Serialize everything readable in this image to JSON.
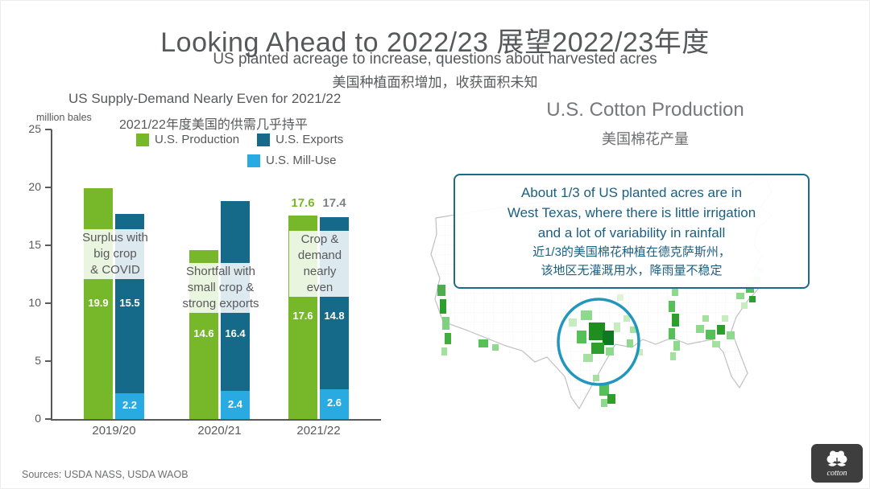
{
  "slide": {
    "title": "Looking Ahead to 2022/23 展望2022/23年度",
    "subtitle_en": "US planted acreage to increase, questions about harvested acres",
    "subtitle_zh": "美国种植面积增加，收获面积未知",
    "sources": "Sources: USDA NASS, USDA WAOB"
  },
  "chart": {
    "title_en": "US Supply-Demand Nearly Even for 2021/22",
    "title_zh": "2021/22年度美国的供需几乎持平",
    "unit_label": "million bales",
    "legend": [
      {
        "label": "U.S. Production",
        "color": "#76b82a"
      },
      {
        "label": "U.S. Exports",
        "color": "#156a8a"
      },
      {
        "label": "U.S. Mill-Use",
        "color": "#29abe2"
      }
    ]
  },
  "chart_data": {
    "type": "bar",
    "title": "US Supply-Demand Nearly Even for 2021/22",
    "unit": "million bales",
    "categories": [
      "2019/20",
      "2020/21",
      "2021/22"
    ],
    "series": [
      {
        "name": "U.S. Production",
        "color": "#76b82a",
        "values": [
          19.9,
          14.6,
          17.6
        ]
      },
      {
        "name": "U.S. Exports",
        "color": "#156a8a",
        "values": [
          15.5,
          16.4,
          14.8
        ],
        "stack": "demand"
      },
      {
        "name": "U.S. Mill-Use",
        "color": "#29abe2",
        "values": [
          2.2,
          2.4,
          2.6
        ],
        "stack": "demand"
      }
    ],
    "ylim": [
      0,
      25
    ],
    "yticks": [
      0,
      5,
      10,
      15,
      20,
      25
    ],
    "grid": false,
    "legend_position": "top",
    "group_annotations": [
      "Surplus with\nbig crop\n& COVID",
      "Shortfall with\nsmall crop &\nstrong exports",
      "Crop &\ndemand\nnearly even"
    ],
    "totals": [
      {
        "category": "2021/22",
        "production_label": "17.6",
        "production_color": "#76b82a",
        "demand_label": "17.4",
        "demand_color": "#808285"
      }
    ]
  },
  "map_panel": {
    "title_en": "U.S. Cotton Production",
    "title_zh": "美国棉花产量",
    "callout": {
      "lines_en": [
        "About 1/3 of US planted acres are in",
        "West Texas, where there is little irrigation",
        "and a lot of variability in rainfall"
      ],
      "lines_zh": [
        "近1/3的美国棉花种植在德克萨斯州，",
        "该地区无灌溉用水，降雨量不稳定"
      ],
      "border_color": "#1b6a8a",
      "text_color": "#1b5f80"
    },
    "highlight_circle_color": "#2396be"
  },
  "logo": {
    "text": "cotton"
  }
}
